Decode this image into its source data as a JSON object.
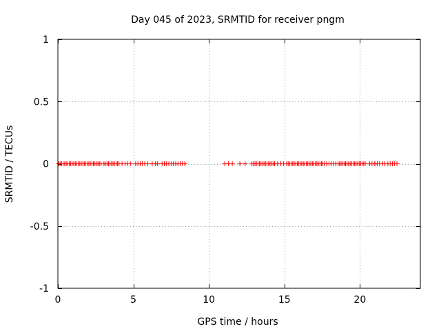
{
  "chart_data": {
    "type": "scatter",
    "title": "Day 045 of 2023, SRMTID for receiver pngm",
    "xlabel": "GPS time / hours",
    "ylabel": "SRMTID / TECUs",
    "xlim": [
      0,
      24
    ],
    "ylim": [
      -1,
      1
    ],
    "x_ticks": [
      0,
      5,
      10,
      15,
      20
    ],
    "x_tick_labels": [
      "0",
      "5",
      "10",
      "15",
      "20"
    ],
    "y_ticks": [
      1,
      0.5,
      0,
      -0.5,
      -1
    ],
    "y_tick_labels": [
      "1",
      "0.5",
      "0",
      "-0.5",
      "-1"
    ],
    "grid": true,
    "marker": "plus",
    "marker_color": "#ff0000",
    "series": [
      {
        "x": [
          0.05,
          0.15,
          0.25,
          0.35,
          0.45,
          0.55,
          0.65,
          0.75,
          0.85,
          0.95,
          1.05,
          1.15,
          1.25,
          1.35,
          1.45,
          1.55,
          1.65,
          1.75,
          1.85,
          1.95,
          2.05,
          2.15,
          2.25,
          2.35,
          2.45,
          2.55,
          2.65,
          2.75,
          2.85,
          3.05,
          3.15,
          3.25,
          3.35,
          3.45,
          3.55,
          3.65,
          3.75,
          3.85,
          3.95,
          4.05,
          4.25,
          4.45,
          4.6,
          4.8,
          5.15,
          5.3,
          5.45,
          5.6,
          5.75,
          5.95,
          6.25,
          6.45,
          6.6,
          6.9,
          7.05,
          7.2,
          7.35,
          7.5,
          7.65,
          7.8,
          7.95,
          8.1,
          8.25,
          8.4,
          11.05,
          11.3,
          11.55,
          12.05,
          12.4,
          12.85,
          12.95,
          13.05,
          13.15,
          13.25,
          13.35,
          13.45,
          13.55,
          13.65,
          13.75,
          13.85,
          13.95,
          14.05,
          14.15,
          14.25,
          14.35,
          14.55,
          14.75,
          14.95,
          15.15,
          15.25,
          15.35,
          15.45,
          15.55,
          15.65,
          15.75,
          15.85,
          15.95,
          16.05,
          16.15,
          16.25,
          16.35,
          16.45,
          16.55,
          16.65,
          16.75,
          16.85,
          16.95,
          17.05,
          17.15,
          17.25,
          17.35,
          17.45,
          17.55,
          17.65,
          17.8,
          17.95,
          18.1,
          18.25,
          18.4,
          18.55,
          18.65,
          18.75,
          18.85,
          18.95,
          19.05,
          19.15,
          19.25,
          19.35,
          19.45,
          19.55,
          19.65,
          19.75,
          19.85,
          19.95,
          20.05,
          20.15,
          20.25,
          20.35,
          20.65,
          20.8,
          20.95,
          21.05,
          21.15,
          21.3,
          21.5,
          21.65,
          21.85,
          22.0,
          22.15,
          22.3,
          22.45
        ],
        "y": [
          0,
          0,
          0,
          0,
          0,
          0,
          0,
          0,
          0,
          0,
          0,
          0,
          0,
          0,
          0,
          0,
          0,
          0,
          0,
          0,
          0,
          0,
          0,
          0,
          0,
          0,
          0,
          0,
          0,
          0,
          0,
          0,
          0,
          0,
          0,
          0,
          0,
          0,
          0,
          0,
          0,
          0,
          0,
          0,
          0,
          0,
          0,
          0,
          0,
          0,
          0,
          0,
          0,
          0,
          0,
          0,
          0,
          0,
          0,
          0,
          0,
          0,
          0,
          0,
          0,
          0,
          0,
          0,
          0,
          0,
          0,
          0,
          0,
          0,
          0,
          0,
          0,
          0,
          0,
          0,
          0,
          0,
          0,
          0,
          0,
          0,
          0,
          0,
          0,
          0,
          0,
          0,
          0,
          0,
          0,
          0,
          0,
          0,
          0,
          0,
          0,
          0,
          0,
          0,
          0,
          0,
          0,
          0,
          0,
          0,
          0,
          0,
          0,
          0,
          0,
          0,
          0,
          0,
          0,
          0,
          0,
          0,
          0,
          0,
          0,
          0,
          0,
          0,
          0,
          0,
          0,
          0,
          0,
          0,
          0,
          0,
          0,
          0,
          0,
          0,
          0,
          0,
          0,
          0,
          0,
          0,
          0,
          0,
          0,
          0,
          0
        ]
      }
    ]
  }
}
